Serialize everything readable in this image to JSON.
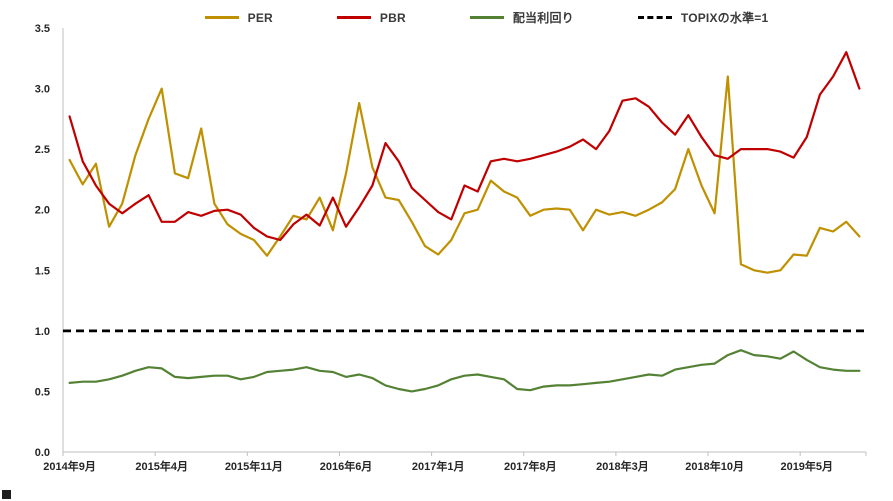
{
  "chart_data": {
    "type": "line",
    "title": "",
    "xlabel": "",
    "ylabel": "",
    "ylim": [
      0,
      3.5
    ],
    "grid": false,
    "legend_position": "top",
    "axis_color": "#BFBFBF",
    "text_color": "#262626",
    "y_ticks": [
      "0.0",
      "0.5",
      "1.0",
      "1.5",
      "2.0",
      "2.5",
      "3.0",
      "3.5"
    ],
    "x_tick_indices": [
      0,
      7,
      14,
      21,
      28,
      35,
      42,
      49,
      56
    ],
    "x": [
      "2014年9月",
      "2014年10月",
      "2014年11月",
      "2014年12月",
      "2015年1月",
      "2015年2月",
      "2015年3月",
      "2015年4月",
      "2015年5月",
      "2015年6月",
      "2015年7月",
      "2015年8月",
      "2015年9月",
      "2015年10月",
      "2015年11月",
      "2015年12月",
      "2016年1月",
      "2016年2月",
      "2016年3月",
      "2016年4月",
      "2016年5月",
      "2016年6月",
      "2016年7月",
      "2016年8月",
      "2016年9月",
      "2016年10月",
      "2016年11月",
      "2016年12月",
      "2017年1月",
      "2017年2月",
      "2017年3月",
      "2017年4月",
      "2017年5月",
      "2017年6月",
      "2017年7月",
      "2017年8月",
      "2017年9月",
      "2017年10月",
      "2017年11月",
      "2017年12月",
      "2018年1月",
      "2018年2月",
      "2018年3月",
      "2018年4月",
      "2018年5月",
      "2018年6月",
      "2018年7月",
      "2018年8月",
      "2018年9月",
      "2018年10月",
      "2018年11月",
      "2018年12月",
      "2019年1月",
      "2019年2月",
      "2019年3月",
      "2019年4月",
      "2019年5月",
      "2019年6月",
      "2019年7月",
      "2019年8月",
      "2019年9月"
    ],
    "series": [
      {
        "id": "per",
        "name": "PER",
        "color": "#BF9000",
        "values": [
          2.41,
          2.21,
          2.38,
          1.86,
          2.05,
          2.45,
          2.75,
          3.0,
          2.3,
          2.26,
          2.67,
          2.05,
          1.88,
          1.8,
          1.75,
          1.62,
          1.78,
          1.95,
          1.92,
          2.1,
          1.83,
          2.3,
          2.88,
          2.35,
          2.1,
          2.08,
          1.9,
          1.7,
          1.63,
          1.75,
          1.97,
          2.0,
          2.24,
          2.15,
          2.1,
          1.95,
          2.0,
          2.01,
          2.0,
          1.83,
          2.0,
          1.96,
          1.98,
          1.95,
          2.0,
          2.06,
          2.17,
          2.5,
          2.2,
          1.97,
          3.1,
          1.55,
          1.5,
          1.48,
          1.5,
          1.63,
          1.62,
          1.85,
          1.82,
          1.9,
          1.78
        ]
      },
      {
        "id": "pbr",
        "name": "PBR",
        "color": "#C00000",
        "values": [
          2.77,
          2.4,
          2.2,
          2.05,
          1.97,
          2.05,
          2.12,
          1.9,
          1.9,
          1.98,
          1.95,
          1.99,
          2.0,
          1.96,
          1.85,
          1.78,
          1.75,
          1.88,
          1.96,
          1.87,
          2.1,
          1.86,
          2.02,
          2.2,
          2.55,
          2.4,
          2.18,
          2.08,
          1.98,
          1.92,
          2.2,
          2.15,
          2.4,
          2.42,
          2.4,
          2.42,
          2.45,
          2.48,
          2.52,
          2.58,
          2.5,
          2.65,
          2.9,
          2.92,
          2.85,
          2.72,
          2.62,
          2.78,
          2.6,
          2.45,
          2.42,
          2.5,
          2.5,
          2.5,
          2.48,
          2.43,
          2.6,
          2.95,
          3.1,
          3.3,
          3.0
        ]
      },
      {
        "id": "dividend-yield",
        "name": "配当利回り",
        "color": "#548235",
        "values": [
          0.57,
          0.58,
          0.58,
          0.6,
          0.63,
          0.67,
          0.7,
          0.69,
          0.62,
          0.61,
          0.62,
          0.63,
          0.63,
          0.6,
          0.62,
          0.66,
          0.67,
          0.68,
          0.7,
          0.67,
          0.66,
          0.62,
          0.64,
          0.61,
          0.55,
          0.52,
          0.5,
          0.52,
          0.55,
          0.6,
          0.63,
          0.64,
          0.62,
          0.6,
          0.52,
          0.51,
          0.54,
          0.55,
          0.55,
          0.56,
          0.57,
          0.58,
          0.6,
          0.62,
          0.64,
          0.63,
          0.68,
          0.7,
          0.72,
          0.73,
          0.8,
          0.84,
          0.8,
          0.79,
          0.77,
          0.83,
          0.76,
          0.7,
          0.68,
          0.67,
          0.67
        ]
      },
      {
        "id": "topix-level",
        "name": "TOPIXの水準=1",
        "color": "#000000",
        "constant": 1.0
      }
    ]
  }
}
